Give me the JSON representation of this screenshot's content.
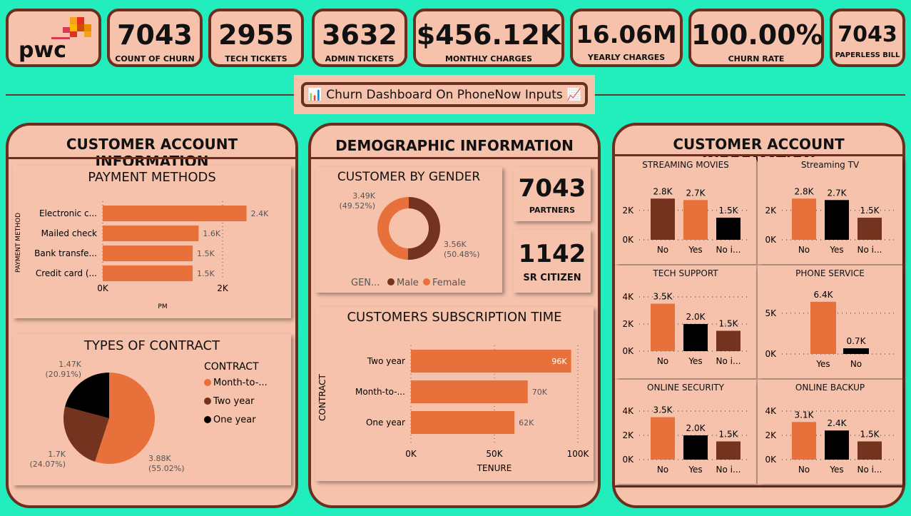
{
  "brand": {
    "logo_text": "pwc"
  },
  "kpis": [
    {
      "value": "7043",
      "label": "COUNT OF CHURN"
    },
    {
      "value": "2955",
      "label": "TECH TICKETS"
    },
    {
      "value": "3632",
      "label": "ADMIN TICKETS"
    },
    {
      "value": "$456.12K",
      "label": "MONTHLY CHARGES"
    },
    {
      "value": "16.06M",
      "label": "YEARLY CHARGES"
    },
    {
      "value": "100.00%",
      "label": "CHURN RATE"
    },
    {
      "value": "7043",
      "label": "PAPERLESS BILL"
    }
  ],
  "dashboard_title": "📊 Churn Dashboard On PhoneNow Inputs 📈",
  "left_section": {
    "title": "CUSTOMER ACCOUNT INFORMATION"
  },
  "middle_section": {
    "title": "DEMOGRAPHIC INFORMATION"
  },
  "right_section": {
    "title": "CUSTOMER ACCOUNT INFORMATION"
  },
  "partners": {
    "value": "7043",
    "label": "PARTNERS"
  },
  "sr_citizen": {
    "value": "1142",
    "label": "SR CITIZEN"
  },
  "colors": {
    "orange": "#e8703a",
    "brown": "#74331e",
    "black": "#000000",
    "background": "#21eebc",
    "panel": "#f6c2ab"
  },
  "chart_data": [
    {
      "id": "payment",
      "type": "bar",
      "orientation": "horizontal",
      "title": "PAYMENT METHODS",
      "ylabel": "PAYMENT METHOD",
      "xlabel": "PM",
      "categories": [
        "Electronic c...",
        "Mailed check",
        "Bank transfe...",
        "Credit card (..."
      ],
      "values": [
        2.4,
        1.6,
        1.5,
        1.5
      ],
      "data_labels": [
        "2.4K",
        "1.6K",
        "1.5K",
        "1.5K"
      ],
      "xlim": [
        0,
        2
      ],
      "xticks": [
        "0K",
        "2K"
      ],
      "color": "#e8703a"
    },
    {
      "id": "contract",
      "type": "pie",
      "title": "TYPES OF CONTRACT",
      "legend_title": "CONTRACT",
      "legend_position": "right",
      "categories": [
        "Month-to-...",
        "Two year",
        "One year"
      ],
      "values": [
        3.88,
        1.7,
        1.47
      ],
      "data_labels": [
        [
          "3.88K",
          "(55.02%)"
        ],
        [
          "1.7K",
          "(24.07%)"
        ],
        [
          "1.47K",
          "(20.91%)"
        ]
      ],
      "colors": [
        "#e8703a",
        "#74331e",
        "#000000"
      ]
    },
    {
      "id": "gender",
      "type": "pie",
      "variant": "donut",
      "title": "CUSTOMER BY GENDER",
      "legend_title": "GEN...",
      "legend_position": "bottom",
      "categories": [
        "Male",
        "Female"
      ],
      "values": [
        3.56,
        3.49
      ],
      "data_labels": [
        [
          "3.56K",
          "(50.48%)"
        ],
        [
          "3.49K",
          "(49.52%)"
        ]
      ],
      "colors": [
        "#74331e",
        "#e8703a"
      ]
    },
    {
      "id": "tenure",
      "type": "bar",
      "orientation": "horizontal",
      "title": "CUSTOMERS SUBSCRIPTION TIME",
      "ylabel": "CONTRACT",
      "xlabel": "TENURE",
      "categories": [
        "Two year",
        "Month-to-...",
        "One year"
      ],
      "values": [
        96,
        70,
        62
      ],
      "data_labels": [
        "96K",
        "70K",
        "62K"
      ],
      "xlim": [
        0,
        100
      ],
      "xticks": [
        "0K",
        "50K",
        "100K"
      ],
      "color": "#e8703a"
    },
    {
      "id": "streaming_movies",
      "type": "bar",
      "title": "STREAMING MOVIES",
      "categories": [
        "No",
        "Yes",
        "No i..."
      ],
      "values": [
        2.8,
        2.7,
        1.5
      ],
      "data_labels": [
        "2.8K",
        "2.7K",
        "1.5K"
      ],
      "ylim": [
        0,
        3.2
      ],
      "yticks": [
        {
          "v": 0,
          "t": "0K"
        },
        {
          "v": 2,
          "t": "2K"
        }
      ],
      "colors": [
        "#74331e",
        "#e8703a",
        "#000000"
      ]
    },
    {
      "id": "streaming_tv",
      "type": "bar",
      "title": "Streaming TV",
      "categories": [
        "No",
        "Yes",
        "No i..."
      ],
      "values": [
        2.8,
        2.7,
        1.5
      ],
      "data_labels": [
        "2.8K",
        "2.7K",
        "1.5K"
      ],
      "ylim": [
        0,
        3.2
      ],
      "yticks": [
        {
          "v": 0,
          "t": "0K"
        },
        {
          "v": 2,
          "t": "2K"
        }
      ],
      "colors": [
        "#e8703a",
        "#000000",
        "#74331e"
      ]
    },
    {
      "id": "tech_support",
      "type": "bar",
      "title": "TECH SUPPORT",
      "categories": [
        "No",
        "Yes",
        "No i..."
      ],
      "values": [
        3.5,
        2.0,
        1.5
      ],
      "data_labels": [
        "3.5K",
        "2.0K",
        "1.5K"
      ],
      "ylim": [
        0,
        4
      ],
      "yticks": [
        {
          "v": 0,
          "t": "0K"
        },
        {
          "v": 2,
          "t": "2K"
        },
        {
          "v": 4,
          "t": "4K"
        }
      ],
      "colors": [
        "#e8703a",
        "#000000",
        "#74331e"
      ]
    },
    {
      "id": "phone_service",
      "type": "bar",
      "title": "PHONE SERVICE",
      "categories": [
        "Yes",
        "No"
      ],
      "values": [
        6.4,
        0.7
      ],
      "data_labels": [
        "6.4K",
        "0.7K"
      ],
      "ylim": [
        0,
        7
      ],
      "yticks": [
        {
          "v": 0,
          "t": "0K"
        },
        {
          "v": 5,
          "t": "5K"
        }
      ],
      "colors": [
        "#e8703a",
        "#000000"
      ]
    },
    {
      "id": "online_security",
      "type": "bar",
      "title": "ONLINE SECURITY",
      "categories": [
        "No",
        "Yes",
        "No i..."
      ],
      "values": [
        3.5,
        2.0,
        1.5
      ],
      "data_labels": [
        "3.5K",
        "2.0K",
        "1.5K"
      ],
      "ylim": [
        0,
        4
      ],
      "yticks": [
        {
          "v": 0,
          "t": "0K"
        },
        {
          "v": 2,
          "t": "2K"
        },
        {
          "v": 4,
          "t": "4K"
        }
      ],
      "colors": [
        "#e8703a",
        "#000000",
        "#74331e"
      ]
    },
    {
      "id": "online_backup",
      "type": "bar",
      "title": "ONLINE BACKUP",
      "categories": [
        "No",
        "Yes",
        "No i..."
      ],
      "values": [
        3.1,
        2.4,
        1.5
      ],
      "data_labels": [
        "3.1K",
        "2.4K",
        "1.5K"
      ],
      "ylim": [
        0,
        4
      ],
      "yticks": [
        {
          "v": 0,
          "t": "0K"
        },
        {
          "v": 2,
          "t": "2K"
        },
        {
          "v": 4,
          "t": "4K"
        }
      ],
      "colors": [
        "#e8703a",
        "#000000",
        "#74331e"
      ]
    }
  ]
}
